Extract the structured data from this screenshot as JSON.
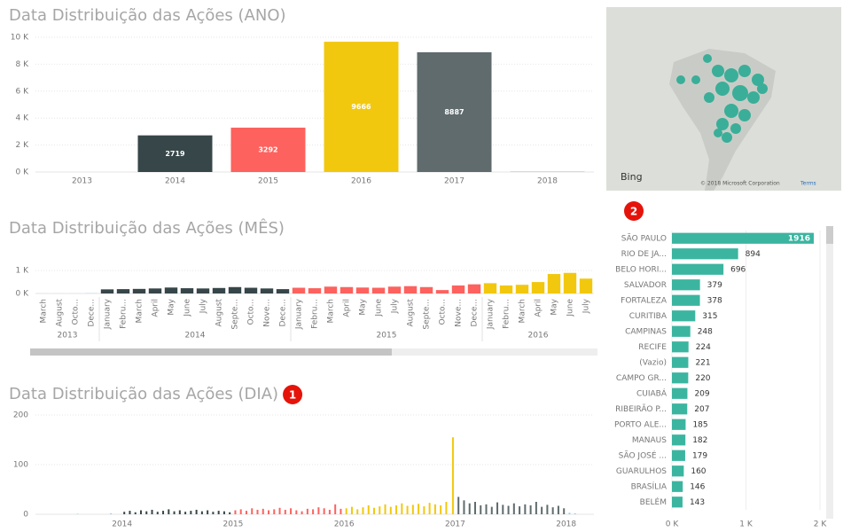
{
  "chart_data": [
    {
      "type": "bar",
      "title": "Data Distribuição das Ações (ANO)",
      "categories": [
        "2013",
        "2014",
        "2015",
        "2016",
        "2017",
        "2018"
      ],
      "values": [
        0,
        2719,
        3292,
        9666,
        8887,
        40
      ],
      "value_labels": [
        null,
        "2719",
        "3292",
        "9666",
        "8887",
        null
      ],
      "colors": [
        "#8ad4eb",
        "#374649",
        "#fd625e",
        "#f2c80f",
        "#5f6b6d",
        "#8ad4eb"
      ],
      "ylim": [
        0,
        10000
      ],
      "yticks": [
        {
          "value": 0,
          "label": "0 K"
        },
        {
          "value": 2000,
          "label": "2 K"
        },
        {
          "value": 4000,
          "label": "4 K"
        },
        {
          "value": 6000,
          "label": "6 K"
        },
        {
          "value": 8000,
          "label": "8 K"
        },
        {
          "value": 10000,
          "label": "10 K"
        }
      ],
      "grid": true
    },
    {
      "type": "grouped-bar",
      "title": "Data Distribuição das Ações (MÊS)",
      "groups": [
        {
          "label": "2013",
          "color": "#8ad4eb",
          "categories": [
            "March",
            "August",
            "Octo...",
            "Dece..."
          ],
          "values": [
            2,
            2,
            2,
            10
          ]
        },
        {
          "label": "2014",
          "color": "#374649",
          "categories": [
            "January",
            "Febru...",
            "March",
            "April",
            "May",
            "June",
            "July",
            "August",
            "Septe...",
            "Octo...",
            "Nove...",
            "Dece..."
          ],
          "values": [
            180,
            190,
            200,
            220,
            260,
            230,
            220,
            240,
            280,
            250,
            220,
            190
          ]
        },
        {
          "label": "2015",
          "color": "#fd625e",
          "categories": [
            "January",
            "Febru...",
            "March",
            "April",
            "May",
            "June",
            "July",
            "August",
            "Septe...",
            "Octo...",
            "Nove...",
            "Dece..."
          ],
          "values": [
            250,
            230,
            300,
            280,
            260,
            250,
            300,
            320,
            280,
            150,
            350,
            400
          ]
        },
        {
          "label": "2016",
          "color": "#f2c80f",
          "categories": [
            "January",
            "Febru...",
            "March",
            "April",
            "May",
            "June",
            "July"
          ],
          "values": [
            450,
            350,
            380,
            500,
            850,
            900,
            650
          ]
        }
      ],
      "ylim": [
        0,
        1200
      ],
      "yticks": [
        {
          "value": 0,
          "label": "0 K"
        },
        {
          "value": 1000,
          "label": "1 K"
        }
      ],
      "grid": true
    },
    {
      "type": "time-bar",
      "title": "Data Distribuição das Ações (DIA)",
      "badge": "1",
      "series": [
        {
          "color": "#8ad4eb",
          "x": [
            2013.6,
            2013.9
          ],
          "values": [
            1,
            2
          ]
        },
        {
          "color": "#374649",
          "x": [
            2014.02,
            2014.07,
            2014.12,
            2014.17,
            2014.22,
            2014.27,
            2014.32,
            2014.37,
            2014.42,
            2014.47,
            2014.52,
            2014.57,
            2014.62,
            2014.67,
            2014.72,
            2014.77,
            2014.82,
            2014.87,
            2014.92,
            2014.97
          ],
          "values": [
            5,
            7,
            4,
            8,
            6,
            9,
            5,
            7,
            10,
            6,
            8,
            5,
            7,
            9,
            6,
            8,
            5,
            7,
            6,
            4
          ]
        },
        {
          "color": "#fd625e",
          "x": [
            2015.02,
            2015.07,
            2015.12,
            2015.17,
            2015.22,
            2015.27,
            2015.32,
            2015.37,
            2015.42,
            2015.47,
            2015.52,
            2015.57,
            2015.62,
            2015.67,
            2015.72,
            2015.77,
            2015.82,
            2015.87,
            2015.92,
            2015.97
          ],
          "values": [
            8,
            10,
            7,
            12,
            9,
            11,
            8,
            10,
            13,
            9,
            12,
            8,
            6,
            11,
            10,
            14,
            12,
            9,
            20,
            11
          ]
        },
        {
          "color": "#f2c80f",
          "x": [
            2016.02,
            2016.07,
            2016.12,
            2016.17,
            2016.22,
            2016.27,
            2016.32,
            2016.37,
            2016.42,
            2016.47,
            2016.52,
            2016.57,
            2016.62,
            2016.67,
            2016.72,
            2016.77,
            2016.82,
            2016.87,
            2016.92,
            2016.98
          ],
          "values": [
            12,
            15,
            10,
            14,
            18,
            13,
            16,
            20,
            15,
            18,
            22,
            17,
            19,
            21,
            16,
            23,
            20,
            18,
            25,
            155
          ]
        },
        {
          "color": "#5f6b6d",
          "x": [
            2017.03,
            2017.08,
            2017.13,
            2017.18,
            2017.23,
            2017.28,
            2017.33,
            2017.38,
            2017.43,
            2017.48,
            2017.53,
            2017.58,
            2017.63,
            2017.68,
            2017.73,
            2017.78,
            2017.83,
            2017.88,
            2017.93,
            2017.98
          ],
          "values": [
            35,
            28,
            22,
            25,
            18,
            20,
            15,
            24,
            19,
            17,
            22,
            16,
            20,
            18,
            25,
            15,
            19,
            14,
            17,
            12
          ]
        },
        {
          "color": "#8ad4eb",
          "x": [
            2018.03,
            2018.08
          ],
          "values": [
            3,
            2
          ]
        }
      ],
      "xlim": [
        2013.22,
        2018.25
      ],
      "xticks": [
        2014,
        2015,
        2016,
        2017,
        2018
      ],
      "ylim": [
        0,
        200
      ],
      "yticks": [
        0,
        100,
        200
      ],
      "grid": true
    },
    {
      "type": "hbar",
      "badge": "2",
      "color": "#3bb5a0",
      "categories": [
        "SÃO PAULO",
        "RIO DE JA...",
        "BELO HORI...",
        "SALVADOR",
        "FORTALEZA",
        "CURITIBA",
        "CAMPINAS",
        "RECIFE",
        "(Vazio)",
        "CAMPO GR...",
        "CUIABÁ",
        "RIBEIRÃO P...",
        "PORTO ALE...",
        "MANAUS",
        "SÃO JOSÉ ...",
        "GUARULHOS",
        "BRASÍLIA",
        "BELÉM"
      ],
      "values": [
        1916,
        894,
        696,
        379,
        378,
        315,
        248,
        224,
        221,
        220,
        209,
        207,
        185,
        182,
        179,
        160,
        146,
        143
      ],
      "xlim": [
        0,
        2000
      ],
      "xticks": [
        {
          "value": 0,
          "label": "0 K"
        },
        {
          "value": 1000,
          "label": "1 K"
        },
        {
          "value": 2000,
          "label": "2 K"
        }
      ]
    }
  ],
  "map": {
    "logo": "Bing",
    "copyright": "© 2018 Microsoft Corporation",
    "terms": "Terms"
  }
}
